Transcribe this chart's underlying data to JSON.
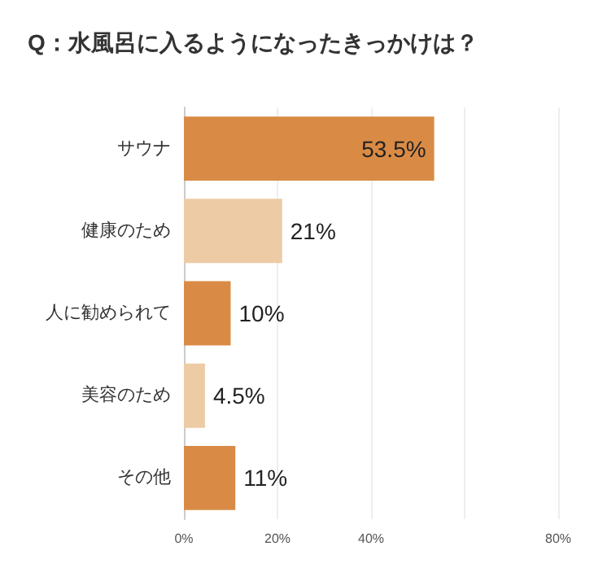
{
  "chart_data": {
    "type": "bar",
    "orientation": "horizontal",
    "title": "Q：水風呂に入るようになったきっかけは？",
    "categories": [
      "サウナ",
      "健康のため",
      "人に勧められて",
      "美容のため",
      "その他"
    ],
    "values": [
      53.5,
      21,
      10,
      4.5,
      11
    ],
    "value_labels": [
      "53.5%",
      "21%",
      "10%",
      "4.5%",
      "11%"
    ],
    "colors": [
      "#d98b45",
      "#eccba5",
      "#d98b45",
      "#eccba5",
      "#d98b45"
    ],
    "xlim": [
      0,
      80
    ],
    "xticks": [
      {
        "value": 0,
        "label": "0%"
      },
      {
        "value": 20,
        "label": "20%"
      },
      {
        "value": 40,
        "label": "40%"
      },
      {
        "value": 60,
        "label": null
      },
      {
        "value": 80,
        "label": "80%"
      }
    ],
    "grid": "x"
  }
}
